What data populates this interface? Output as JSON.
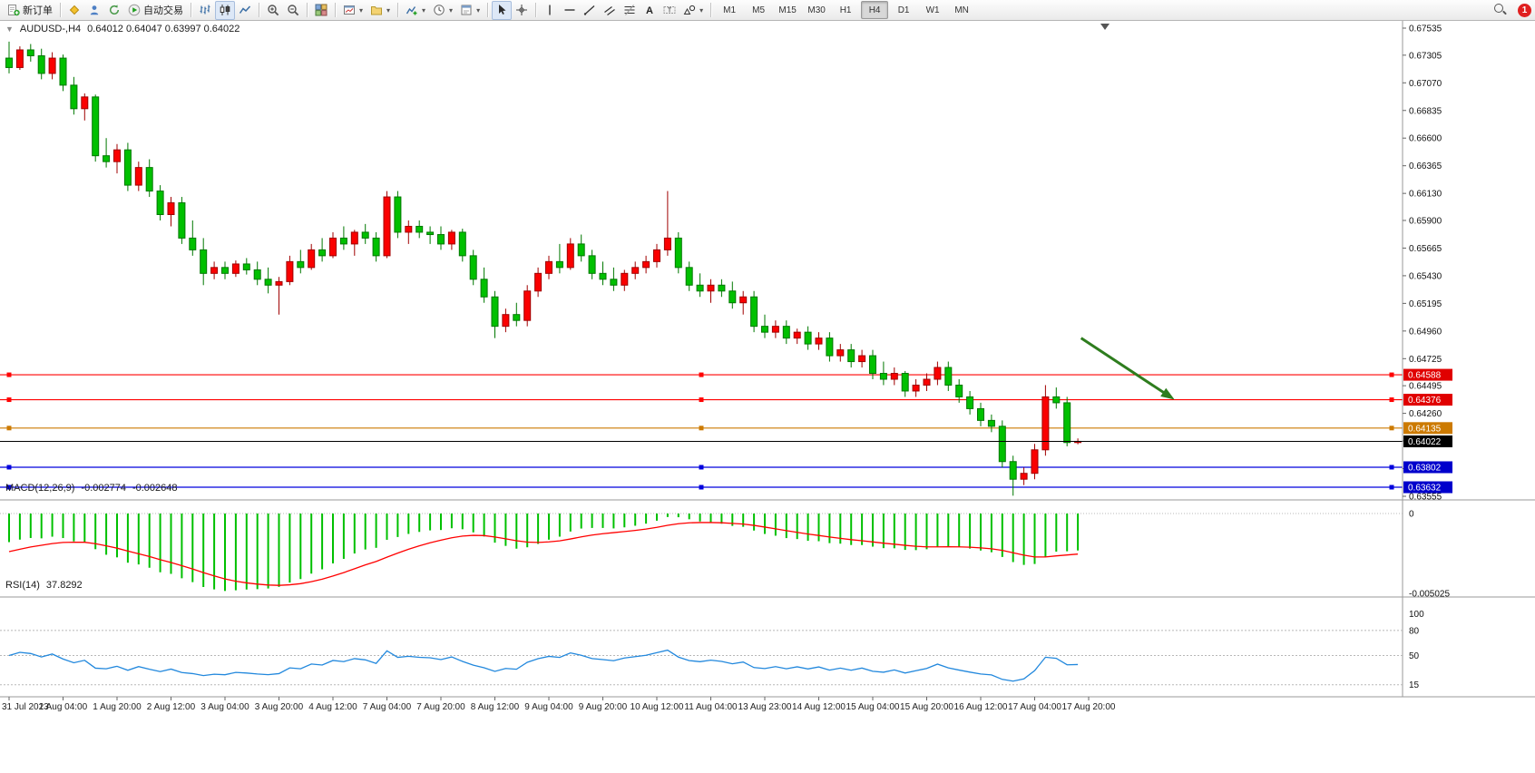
{
  "toolbar": {
    "items": [
      {
        "type": "button",
        "icon": "new-order",
        "label": "新订单",
        "name": "new-order-button"
      },
      {
        "type": "sep"
      },
      {
        "type": "button",
        "icon": "metaeditor",
        "name": "metaeditor-button"
      },
      {
        "type": "button",
        "icon": "market",
        "name": "market-watch-button"
      },
      {
        "type": "button",
        "icon": "refresh",
        "name": "refresh-button"
      },
      {
        "type": "button",
        "icon": "autotrading",
        "label": "自动交易",
        "name": "autotrading-button"
      },
      {
        "type": "sep"
      },
      {
        "type": "button",
        "icon": "chart-bars",
        "name": "bar-chart-button"
      },
      {
        "type": "button",
        "icon": "chart-candles",
        "name": "candlestick-chart-button",
        "active": true
      },
      {
        "type": "button",
        "icon": "chart-line",
        "name": "line-chart-button"
      },
      {
        "type": "sep"
      },
      {
        "type": "button",
        "icon": "zoom-in",
        "name": "zoom-in-button"
      },
      {
        "type": "button",
        "icon": "zoom-out",
        "name": "zoom-out-button"
      },
      {
        "type": "sep"
      },
      {
        "type": "button",
        "icon": "tile-windows",
        "name": "tile-windows-button"
      },
      {
        "type": "sep"
      },
      {
        "type": "button",
        "icon": "new-chart",
        "dropdown": true,
        "name": "new-chart-button"
      },
      {
        "type": "button",
        "icon": "profiles",
        "dropdown": true,
        "name": "profiles-button"
      },
      {
        "type": "sep"
      },
      {
        "type": "button",
        "icon": "indicators",
        "dropdown": true,
        "name": "indicators-button"
      },
      {
        "type": "button",
        "icon": "periods",
        "dropdown": true,
        "name": "periods-button"
      },
      {
        "type": "button",
        "icon": "templates",
        "dropdown": true,
        "name": "templates-button"
      },
      {
        "type": "sep"
      },
      {
        "type": "button",
        "icon": "cursor",
        "name": "cursor-tool-button",
        "active": true
      },
      {
        "type": "button",
        "icon": "crosshair",
        "name": "crosshair-tool-button"
      },
      {
        "type": "sep"
      },
      {
        "type": "button",
        "icon": "vline",
        "name": "vertical-line-tool-button"
      },
      {
        "type": "button",
        "icon": "hline",
        "name": "horizontal-line-tool-button"
      },
      {
        "type": "button",
        "icon": "trendline",
        "name": "trendline-tool-button"
      },
      {
        "type": "button",
        "icon": "channel",
        "name": "channel-tool-button"
      },
      {
        "type": "button",
        "icon": "fibonacci",
        "name": "fibonacci-tool-button"
      },
      {
        "type": "button",
        "icon": "text-tool",
        "name": "text-tool-button"
      },
      {
        "type": "button",
        "icon": "label-tool",
        "name": "label-tool-button"
      },
      {
        "type": "button",
        "icon": "shapes",
        "dropdown": true,
        "name": "shapes-tool-button"
      },
      {
        "type": "sep"
      }
    ],
    "timeframes": [
      "M1",
      "M5",
      "M15",
      "M30",
      "H1",
      "H4",
      "D1",
      "W1",
      "MN"
    ],
    "active_timeframe": "H4",
    "notification_count": "1"
  },
  "chart": {
    "symbol_period": "AUDUSD-,H4",
    "ohlc": "0.64012 0.64047 0.63997 0.64022"
  },
  "indicators": {
    "macd": {
      "label": "MACD(12,26,9)",
      "value_main": "-0.002774",
      "value_signal": "-0.002648",
      "axis_zero": "0",
      "axis_min": "-0.005025"
    },
    "rsi": {
      "label": "RSI(14)",
      "value": "37.8292",
      "axis_labels": [
        "100",
        "80",
        "50",
        "15"
      ],
      "levels": [
        80,
        50,
        15
      ]
    }
  },
  "chart_data": {
    "type": "candlestick",
    "symbol": "AUDUSD-",
    "timeframe": "H4",
    "y_ticks": [
      0.67535,
      0.67305,
      0.6707,
      0.66835,
      0.666,
      0.66365,
      0.6613,
      0.659,
      0.65665,
      0.6543,
      0.65195,
      0.6496,
      0.64725,
      0.64495,
      0.6426,
      0.64025,
      0.6379,
      0.63555
    ],
    "x_labels": [
      "31 Jul 2023",
      "1 Aug 04:00",
      "1 Aug 20:00",
      "2 Aug 12:00",
      "3 Aug 04:00",
      "3 Aug 20:00",
      "4 Aug 12:00",
      "7 Aug 04:00",
      "7 Aug 20:00",
      "8 Aug 12:00",
      "9 Aug 04:00",
      "9 Aug 20:00",
      "10 Aug 12:00",
      "11 Aug 04:00",
      "13 Aug 23:00",
      "14 Aug 12:00",
      "15 Aug 04:00",
      "15 Aug 20:00",
      "16 Aug 12:00",
      "17 Aug 04:00",
      "17 Aug 20:00"
    ],
    "open": [
      0.6728,
      0.672,
      0.6735,
      0.673,
      0.6715,
      0.6728,
      0.6705,
      0.6685,
      0.6695,
      0.6645,
      0.664,
      0.665,
      0.662,
      0.6635,
      0.6615,
      0.6595,
      0.6605,
      0.6575,
      0.6565,
      0.6545,
      0.655,
      0.6545,
      0.6553,
      0.6548,
      0.654,
      0.6535,
      0.6538,
      0.6555,
      0.655,
      0.6565,
      0.656,
      0.6575,
      0.657,
      0.658,
      0.6575,
      0.656,
      0.661,
      0.658,
      0.6585,
      0.658,
      0.6578,
      0.657,
      0.658,
      0.656,
      0.654,
      0.6525,
      0.65,
      0.651,
      0.6505,
      0.653,
      0.6545,
      0.6555,
      0.655,
      0.657,
      0.656,
      0.6545,
      0.654,
      0.6535,
      0.6545,
      0.655,
      0.6555,
      0.6565,
      0.6575,
      0.655,
      0.6535,
      0.653,
      0.6535,
      0.653,
      0.652,
      0.6525,
      0.65,
      0.6495,
      0.65,
      0.649,
      0.6495,
      0.6485,
      0.649,
      0.6475,
      0.648,
      0.647,
      0.6475,
      0.646,
      0.6455,
      0.646,
      0.6445,
      0.645,
      0.6455,
      0.6465,
      0.645,
      0.644,
      0.643,
      0.642,
      0.6415,
      0.6385,
      0.637,
      0.6375,
      0.6395,
      0.644,
      0.6435,
      0.64012
    ],
    "high": [
      0.6742,
      0.6738,
      0.674,
      0.6736,
      0.6733,
      0.6731,
      0.6712,
      0.6698,
      0.6697,
      0.666,
      0.6655,
      0.6656,
      0.664,
      0.6642,
      0.662,
      0.661,
      0.661,
      0.659,
      0.6575,
      0.6555,
      0.6555,
      0.6556,
      0.6558,
      0.6555,
      0.655,
      0.6542,
      0.656,
      0.6565,
      0.657,
      0.6575,
      0.658,
      0.6585,
      0.6582,
      0.6587,
      0.658,
      0.6615,
      0.6615,
      0.659,
      0.659,
      0.6585,
      0.6585,
      0.6582,
      0.6583,
      0.6565,
      0.655,
      0.653,
      0.6515,
      0.652,
      0.6535,
      0.655,
      0.656,
      0.657,
      0.6575,
      0.6578,
      0.6565,
      0.6555,
      0.655,
      0.6548,
      0.6555,
      0.656,
      0.657,
      0.6615,
      0.658,
      0.6555,
      0.6545,
      0.654,
      0.654,
      0.6538,
      0.653,
      0.653,
      0.651,
      0.6505,
      0.6505,
      0.6498,
      0.65,
      0.6495,
      0.6495,
      0.6485,
      0.6485,
      0.648,
      0.648,
      0.647,
      0.6465,
      0.6462,
      0.6455,
      0.646,
      0.647,
      0.647,
      0.6455,
      0.6445,
      0.6435,
      0.6425,
      0.642,
      0.639,
      0.638,
      0.64,
      0.645,
      0.6448,
      0.644,
      0.64047
    ],
    "low": [
      0.6715,
      0.6718,
      0.6725,
      0.671,
      0.671,
      0.67,
      0.668,
      0.6675,
      0.664,
      0.6635,
      0.663,
      0.6615,
      0.6615,
      0.661,
      0.659,
      0.6585,
      0.657,
      0.656,
      0.6535,
      0.654,
      0.654,
      0.6542,
      0.6544,
      0.6535,
      0.6528,
      0.651,
      0.6535,
      0.6545,
      0.6548,
      0.6555,
      0.6558,
      0.6565,
      0.656,
      0.657,
      0.6555,
      0.6558,
      0.6575,
      0.657,
      0.6575,
      0.657,
      0.6565,
      0.6565,
      0.6555,
      0.6535,
      0.652,
      0.649,
      0.6495,
      0.65,
      0.65,
      0.6525,
      0.654,
      0.6545,
      0.6548,
      0.6555,
      0.654,
      0.6535,
      0.653,
      0.653,
      0.654,
      0.6545,
      0.655,
      0.656,
      0.6545,
      0.653,
      0.6525,
      0.652,
      0.6525,
      0.6515,
      0.651,
      0.6495,
      0.649,
      0.649,
      0.6485,
      0.6485,
      0.648,
      0.648,
      0.647,
      0.647,
      0.6465,
      0.6465,
      0.6455,
      0.645,
      0.645,
      0.644,
      0.644,
      0.6445,
      0.645,
      0.6445,
      0.6435,
      0.6425,
      0.6415,
      0.641,
      0.638,
      0.6356,
      0.6365,
      0.637,
      0.639,
      0.643,
      0.6398,
      0.63997
    ],
    "close": [
      0.672,
      0.6735,
      0.673,
      0.6715,
      0.6728,
      0.6705,
      0.6685,
      0.6695,
      0.6645,
      0.664,
      0.665,
      0.662,
      0.6635,
      0.6615,
      0.6595,
      0.6605,
      0.6575,
      0.6565,
      0.6545,
      0.655,
      0.6545,
      0.6553,
      0.6548,
      0.654,
      0.6535,
      0.6538,
      0.6555,
      0.655,
      0.6565,
      0.656,
      0.6575,
      0.657,
      0.658,
      0.6575,
      0.656,
      0.661,
      0.658,
      0.6585,
      0.658,
      0.6578,
      0.657,
      0.658,
      0.656,
      0.654,
      0.6525,
      0.65,
      0.651,
      0.6505,
      0.653,
      0.6545,
      0.6555,
      0.655,
      0.657,
      0.656,
      0.6545,
      0.654,
      0.6535,
      0.6545,
      0.655,
      0.6555,
      0.6565,
      0.6575,
      0.655,
      0.6535,
      0.653,
      0.6535,
      0.653,
      0.652,
      0.6525,
      0.65,
      0.6495,
      0.65,
      0.649,
      0.6495,
      0.6485,
      0.649,
      0.6475,
      0.648,
      0.647,
      0.6475,
      0.646,
      0.6455,
      0.646,
      0.6445,
      0.645,
      0.6455,
      0.6465,
      0.645,
      0.644,
      0.643,
      0.642,
      0.6415,
      0.6385,
      0.637,
      0.6375,
      0.6395,
      0.644,
      0.6435,
      0.64012,
      0.64022
    ],
    "hlines": [
      {
        "name": "resistance-line-1",
        "price": 0.64588,
        "color": "#ff0000",
        "badge": "0.64588",
        "badge_color": "#e00000",
        "handles": true
      },
      {
        "name": "resistance-line-2",
        "price": 0.64376,
        "color": "#ff0000",
        "badge": "0.64376",
        "badge_color": "#e00000",
        "handles": true
      },
      {
        "name": "support-line-1",
        "price": 0.64135,
        "color": "#cc7a00",
        "badge": "0.64135",
        "badge_color": "#cc7a00",
        "handles": true
      },
      {
        "name": "bid-price-line",
        "price": 0.64022,
        "color": "#000000",
        "badge": "0.64022",
        "badge_color": "#000000",
        "handles": false
      },
      {
        "name": "support-line-2",
        "price": 0.63802,
        "color": "#0000dd",
        "badge": "0.63802",
        "badge_color": "#0000cc",
        "handles": true
      },
      {
        "name": "support-line-3",
        "price": 0.63632,
        "color": "#0000dd",
        "badge": "0.63632",
        "badge_color": "#0000cc",
        "handles": true
      }
    ],
    "arrow": {
      "from_bar": 99.3,
      "from_price": 0.649,
      "to_bar": 107.4,
      "to_price": 0.6441,
      "color": "#2e7d1e"
    },
    "colors": {
      "up": "#fa0000",
      "up_stroke": "#a00000",
      "down": "#00c000",
      "down_stroke": "#007800",
      "macd_histogram": "#00c000",
      "macd_signal": "#ff0000",
      "rsi_line": "#2288dd"
    }
  }
}
